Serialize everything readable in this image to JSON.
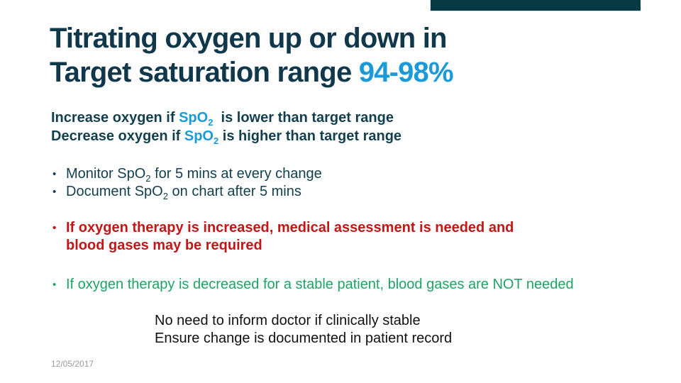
{
  "slide": {
    "bullet_char": "•",
    "title": {
      "line1": "Titrating oxygen up or down in",
      "line2_prefix": "Target saturation range ",
      "line2_accent": "94-98%"
    },
    "intro": {
      "increase": {
        "pre": "Increase oxygen if ",
        "spo": "SpO",
        "sub": "2",
        "post": "  is lower than target range"
      },
      "decrease": {
        "pre": "Decrease oxygen if ",
        "spo": "SpO",
        "sub": "2",
        "post": " is higher than target range"
      }
    },
    "monitor_bullets": [
      {
        "pre": "Monitor ",
        "spo": "SpO",
        "sub": "2",
        "post": " for 5 mins at every change"
      },
      {
        "pre": "Document ",
        "spo": "SpO",
        "sub": "2",
        "post": " on chart after 5 mins"
      }
    ],
    "red_bullet": {
      "line1": "If oxygen therapy is increased, medical assessment is needed and",
      "line2": "blood gases may be required"
    },
    "green_bullet": "If oxygen therapy is decreased for a stable patient, blood gases are NOT needed",
    "note": {
      "line1": "No need to inform doctor if clinically stable",
      "line2": "Ensure change is documented in patient record"
    },
    "date": "12/05/2017",
    "colors": {
      "top_bar": "#083a46",
      "title_dark": "#11374a",
      "accent_blue": "#1c9ad8",
      "body_dark": "#123f4e",
      "alert_red": "#c11717",
      "ok_green": "#1fa364",
      "note_black": "#111111",
      "date_gray": "#9a9a9a"
    }
  }
}
